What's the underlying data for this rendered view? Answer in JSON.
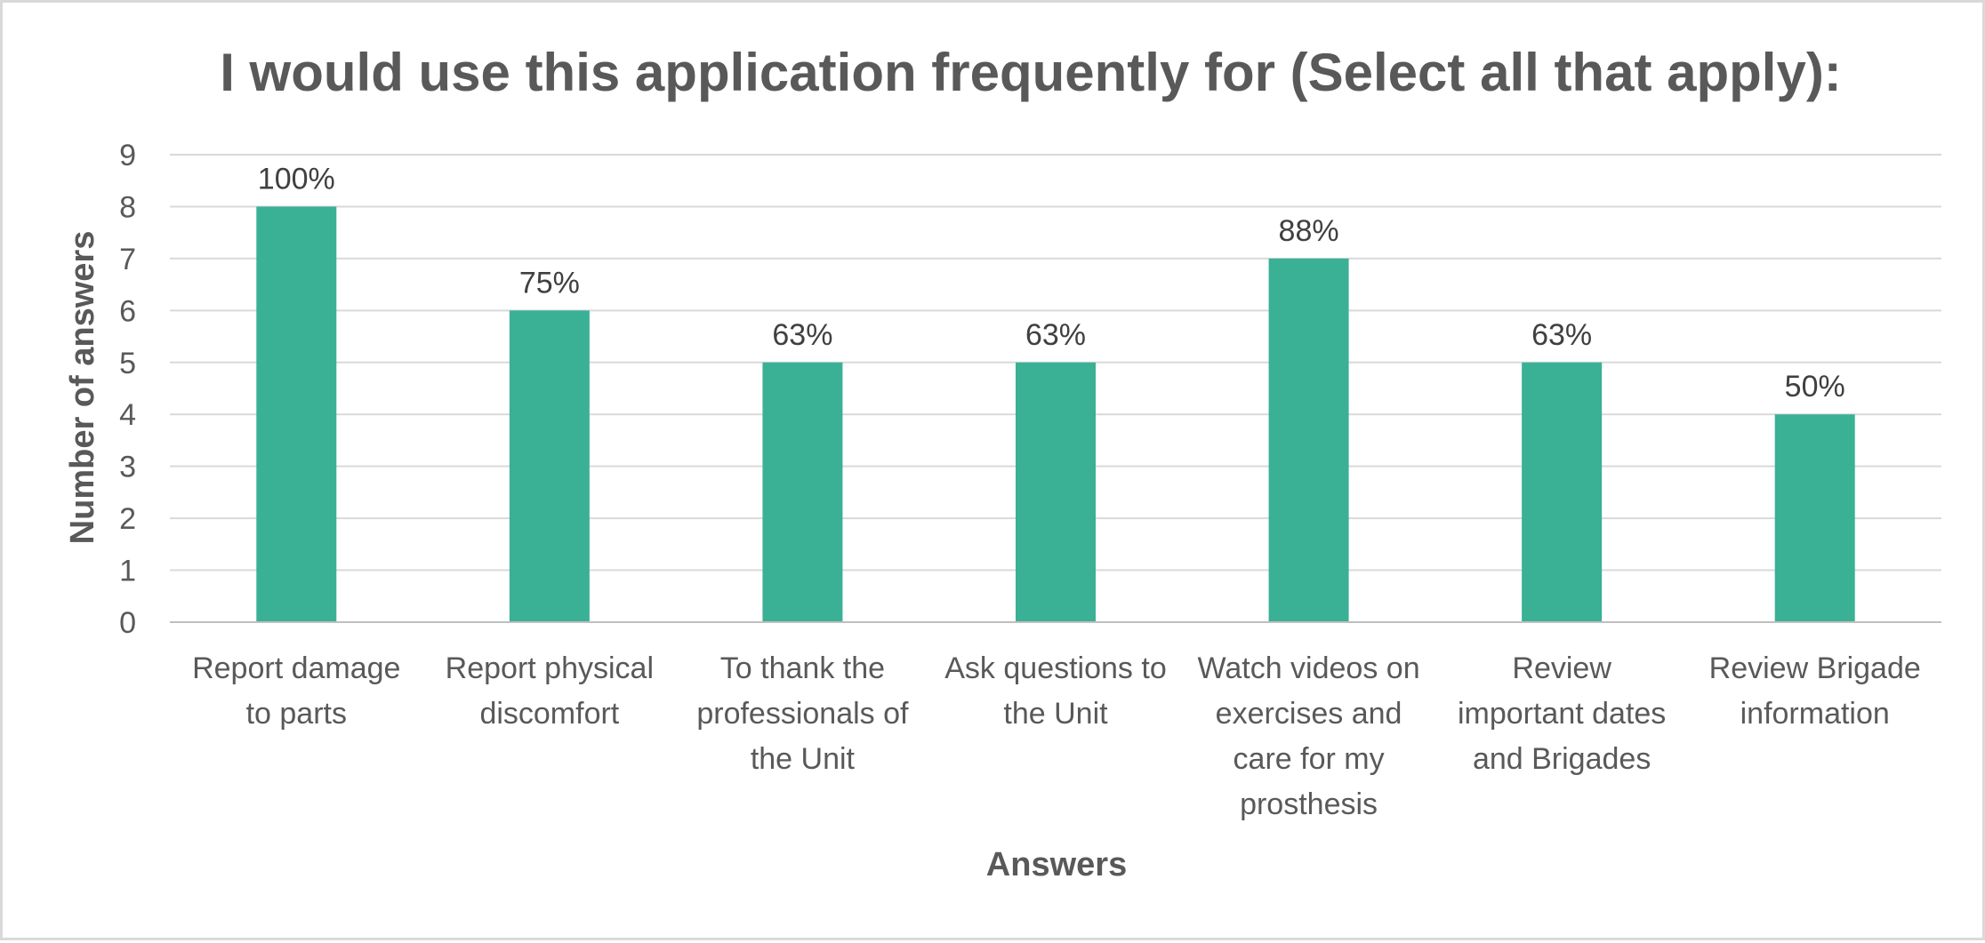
{
  "chart_data": {
    "type": "bar",
    "title": "I would use this application frequently for (Select all that apply):",
    "xlabel": "Answers",
    "ylabel": "Number of answers",
    "ylim": [
      0,
      9
    ],
    "yticks": [
      "0",
      "1",
      "2",
      "3",
      "4",
      "5",
      "6",
      "7",
      "8",
      "9"
    ],
    "grid": true,
    "categories": [
      [
        "Report damage",
        "to parts"
      ],
      [
        "Report physical",
        "discomfort"
      ],
      [
        "To thank the",
        "professionals of",
        "the Unit"
      ],
      [
        "Ask questions to",
        "the Unit"
      ],
      [
        "Watch videos on",
        "exercises and",
        "care for my",
        "prosthesis"
      ],
      [
        "Review",
        "important dates",
        "and Brigades"
      ],
      [
        "Review Brigade",
        "information"
      ]
    ],
    "values": [
      8,
      6,
      5,
      5,
      7,
      5,
      4
    ],
    "data_labels": [
      "100%",
      "75%",
      "63%",
      "63%",
      "88%",
      "63%",
      "50%"
    ],
    "bar_color": "#3ab095"
  }
}
